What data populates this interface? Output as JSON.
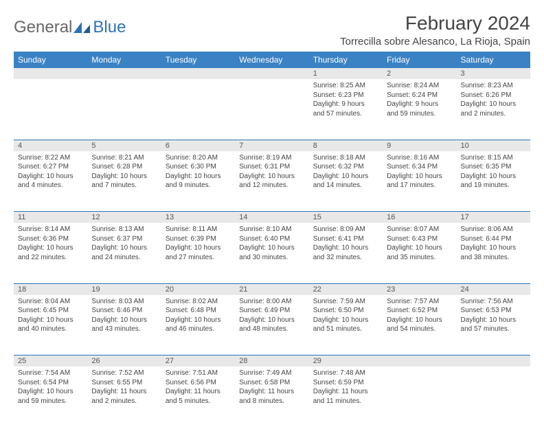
{
  "brand": {
    "part1": "General",
    "part2": "Blue"
  },
  "title": "February 2024",
  "location": "Torrecilla sobre Alesanco, La Rioja, Spain",
  "colors": {
    "header_bg": "#3b82c4",
    "header_fg": "#ffffff",
    "daynum_bg": "#e8e8e8",
    "rule": "#2d72b8",
    "brand_gray": "#666666",
    "brand_blue": "#2d72b8",
    "text": "#444444",
    "page_bg": "#ffffff"
  },
  "day_headers": [
    "Sunday",
    "Monday",
    "Tuesday",
    "Wednesday",
    "Thursday",
    "Friday",
    "Saturday"
  ],
  "weeks": [
    {
      "nums": [
        "",
        "",
        "",
        "",
        "1",
        "2",
        "3"
      ],
      "cells": [
        null,
        null,
        null,
        null,
        {
          "sunrise": "Sunrise: 8:25 AM",
          "sunset": "Sunset: 6:23 PM",
          "day1": "Daylight: 9 hours",
          "day2": "and 57 minutes."
        },
        {
          "sunrise": "Sunrise: 8:24 AM",
          "sunset": "Sunset: 6:24 PM",
          "day1": "Daylight: 9 hours",
          "day2": "and 59 minutes."
        },
        {
          "sunrise": "Sunrise: 8:23 AM",
          "sunset": "Sunset: 6:26 PM",
          "day1": "Daylight: 10 hours",
          "day2": "and 2 minutes."
        }
      ]
    },
    {
      "nums": [
        "4",
        "5",
        "6",
        "7",
        "8",
        "9",
        "10"
      ],
      "cells": [
        {
          "sunrise": "Sunrise: 8:22 AM",
          "sunset": "Sunset: 6:27 PM",
          "day1": "Daylight: 10 hours",
          "day2": "and 4 minutes."
        },
        {
          "sunrise": "Sunrise: 8:21 AM",
          "sunset": "Sunset: 6:28 PM",
          "day1": "Daylight: 10 hours",
          "day2": "and 7 minutes."
        },
        {
          "sunrise": "Sunrise: 8:20 AM",
          "sunset": "Sunset: 6:30 PM",
          "day1": "Daylight: 10 hours",
          "day2": "and 9 minutes."
        },
        {
          "sunrise": "Sunrise: 8:19 AM",
          "sunset": "Sunset: 6:31 PM",
          "day1": "Daylight: 10 hours",
          "day2": "and 12 minutes."
        },
        {
          "sunrise": "Sunrise: 8:18 AM",
          "sunset": "Sunset: 6:32 PM",
          "day1": "Daylight: 10 hours",
          "day2": "and 14 minutes."
        },
        {
          "sunrise": "Sunrise: 8:16 AM",
          "sunset": "Sunset: 6:34 PM",
          "day1": "Daylight: 10 hours",
          "day2": "and 17 minutes."
        },
        {
          "sunrise": "Sunrise: 8:15 AM",
          "sunset": "Sunset: 6:35 PM",
          "day1": "Daylight: 10 hours",
          "day2": "and 19 minutes."
        }
      ]
    },
    {
      "nums": [
        "11",
        "12",
        "13",
        "14",
        "15",
        "16",
        "17"
      ],
      "cells": [
        {
          "sunrise": "Sunrise: 8:14 AM",
          "sunset": "Sunset: 6:36 PM",
          "day1": "Daylight: 10 hours",
          "day2": "and 22 minutes."
        },
        {
          "sunrise": "Sunrise: 8:13 AM",
          "sunset": "Sunset: 6:37 PM",
          "day1": "Daylight: 10 hours",
          "day2": "and 24 minutes."
        },
        {
          "sunrise": "Sunrise: 8:11 AM",
          "sunset": "Sunset: 6:39 PM",
          "day1": "Daylight: 10 hours",
          "day2": "and 27 minutes."
        },
        {
          "sunrise": "Sunrise: 8:10 AM",
          "sunset": "Sunset: 6:40 PM",
          "day1": "Daylight: 10 hours",
          "day2": "and 30 minutes."
        },
        {
          "sunrise": "Sunrise: 8:09 AM",
          "sunset": "Sunset: 6:41 PM",
          "day1": "Daylight: 10 hours",
          "day2": "and 32 minutes."
        },
        {
          "sunrise": "Sunrise: 8:07 AM",
          "sunset": "Sunset: 6:43 PM",
          "day1": "Daylight: 10 hours",
          "day2": "and 35 minutes."
        },
        {
          "sunrise": "Sunrise: 8:06 AM",
          "sunset": "Sunset: 6:44 PM",
          "day1": "Daylight: 10 hours",
          "day2": "and 38 minutes."
        }
      ]
    },
    {
      "nums": [
        "18",
        "19",
        "20",
        "21",
        "22",
        "23",
        "24"
      ],
      "cells": [
        {
          "sunrise": "Sunrise: 8:04 AM",
          "sunset": "Sunset: 6:45 PM",
          "day1": "Daylight: 10 hours",
          "day2": "and 40 minutes."
        },
        {
          "sunrise": "Sunrise: 8:03 AM",
          "sunset": "Sunset: 6:46 PM",
          "day1": "Daylight: 10 hours",
          "day2": "and 43 minutes."
        },
        {
          "sunrise": "Sunrise: 8:02 AM",
          "sunset": "Sunset: 6:48 PM",
          "day1": "Daylight: 10 hours",
          "day2": "and 46 minutes."
        },
        {
          "sunrise": "Sunrise: 8:00 AM",
          "sunset": "Sunset: 6:49 PM",
          "day1": "Daylight: 10 hours",
          "day2": "and 48 minutes."
        },
        {
          "sunrise": "Sunrise: 7:59 AM",
          "sunset": "Sunset: 6:50 PM",
          "day1": "Daylight: 10 hours",
          "day2": "and 51 minutes."
        },
        {
          "sunrise": "Sunrise: 7:57 AM",
          "sunset": "Sunset: 6:52 PM",
          "day1": "Daylight: 10 hours",
          "day2": "and 54 minutes."
        },
        {
          "sunrise": "Sunrise: 7:56 AM",
          "sunset": "Sunset: 6:53 PM",
          "day1": "Daylight: 10 hours",
          "day2": "and 57 minutes."
        }
      ]
    },
    {
      "nums": [
        "25",
        "26",
        "27",
        "28",
        "29",
        "",
        ""
      ],
      "cells": [
        {
          "sunrise": "Sunrise: 7:54 AM",
          "sunset": "Sunset: 6:54 PM",
          "day1": "Daylight: 10 hours",
          "day2": "and 59 minutes."
        },
        {
          "sunrise": "Sunrise: 7:52 AM",
          "sunset": "Sunset: 6:55 PM",
          "day1": "Daylight: 11 hours",
          "day2": "and 2 minutes."
        },
        {
          "sunrise": "Sunrise: 7:51 AM",
          "sunset": "Sunset: 6:56 PM",
          "day1": "Daylight: 11 hours",
          "day2": "and 5 minutes."
        },
        {
          "sunrise": "Sunrise: 7:49 AM",
          "sunset": "Sunset: 6:58 PM",
          "day1": "Daylight: 11 hours",
          "day2": "and 8 minutes."
        },
        {
          "sunrise": "Sunrise: 7:48 AM",
          "sunset": "Sunset: 6:59 PM",
          "day1": "Daylight: 11 hours",
          "day2": "and 11 minutes."
        },
        null,
        null
      ]
    }
  ]
}
